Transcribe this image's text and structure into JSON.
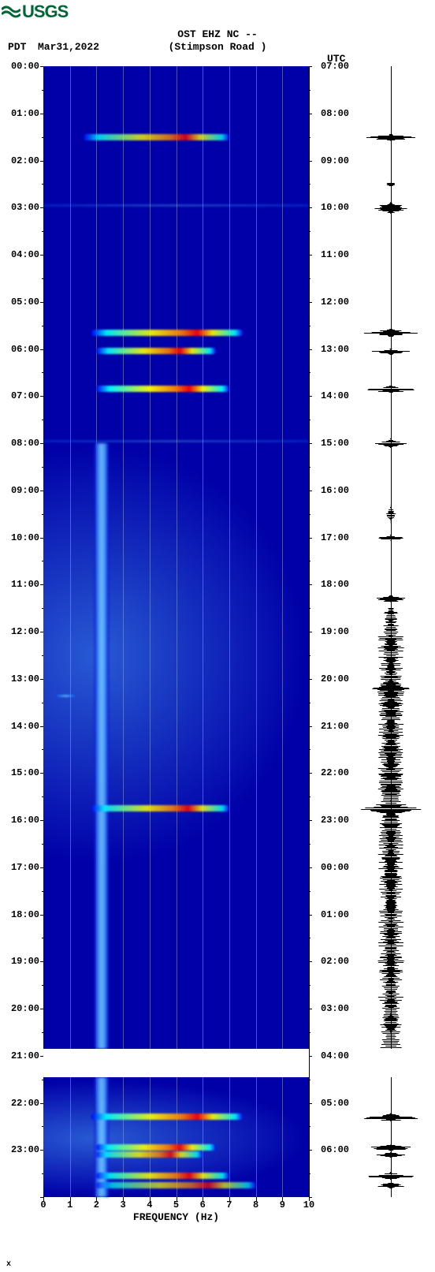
{
  "logo": {
    "text": "USGS",
    "color": "#006633"
  },
  "header": {
    "station_line": "OST EHZ NC --",
    "location_line": "(Stimpson Road )",
    "tz_left": "PDT",
    "date": "Mar31,2022",
    "tz_right": "UTC"
  },
  "axes": {
    "x_label": "FREQUENCY (Hz)",
    "x_min": 0,
    "x_max": 10,
    "x_step": 1,
    "left_ticks": [
      "00:00",
      "01:00",
      "02:00",
      "03:00",
      "04:00",
      "05:00",
      "06:00",
      "07:00",
      "08:00",
      "09:00",
      "10:00",
      "11:00",
      "12:00",
      "13:00",
      "14:00",
      "15:00",
      "16:00",
      "17:00",
      "18:00",
      "19:00",
      "20:00",
      "21:00",
      "22:00",
      "23:00"
    ],
    "right_ticks": [
      "07:00",
      "08:00",
      "09:00",
      "10:00",
      "11:00",
      "12:00",
      "13:00",
      "14:00",
      "15:00",
      "16:00",
      "17:00",
      "18:00",
      "19:00",
      "20:00",
      "21:00",
      "22:00",
      "23:00",
      "00:00",
      "01:00",
      "02:00",
      "03:00",
      "04:00",
      "05:00",
      "06:00"
    ],
    "n_hours": 24
  },
  "plot": {
    "bg_color": "#0000a8",
    "grid_color": "rgba(200,200,200,0.4)"
  },
  "data_gaps": [
    {
      "start_hour": 20.85,
      "end_hour": 21.45
    }
  ],
  "noise_column": [
    {
      "start_hour": 8.0,
      "end_hour": 20.85,
      "freq_center": 2.2
    },
    {
      "start_hour": 21.45,
      "end_hour": 24.0,
      "freq_center": 2.2
    }
  ],
  "diffuse_noise": [
    {
      "start_hour": 8.0,
      "end_hour": 17.0
    },
    {
      "start_hour": 21.5,
      "end_hour": 24.0
    }
  ],
  "events": [
    {
      "hour": 1.5,
      "freq_start": 1.5,
      "freq_end": 7.0,
      "intensity": 0.8
    },
    {
      "hour": 3.0,
      "freq_start": 0.0,
      "freq_end": 10.0,
      "intensity": 0.3,
      "thin": true
    },
    {
      "hour": 5.65,
      "freq_start": 1.8,
      "freq_end": 7.5,
      "intensity": 0.9
    },
    {
      "hour": 6.05,
      "freq_start": 2.0,
      "freq_end": 6.5,
      "intensity": 0.9
    },
    {
      "hour": 6.85,
      "freq_start": 2.0,
      "freq_end": 7.0,
      "intensity": 0.95
    },
    {
      "hour": 8.0,
      "freq_start": 0.0,
      "freq_end": 10.0,
      "intensity": 0.3,
      "thin": true
    },
    {
      "hour": 13.4,
      "freq_start": 0.5,
      "freq_end": 1.2,
      "intensity": 0.7,
      "thin": true
    },
    {
      "hour": 15.75,
      "freq_start": 1.8,
      "freq_end": 7.0,
      "intensity": 0.85
    },
    {
      "hour": 22.3,
      "freq_start": 1.8,
      "freq_end": 7.5,
      "intensity": 0.9
    },
    {
      "hour": 22.95,
      "freq_start": 2.0,
      "freq_end": 6.5,
      "intensity": 0.9
    },
    {
      "hour": 23.1,
      "freq_start": 2.0,
      "freq_end": 6.0,
      "intensity": 0.8
    },
    {
      "hour": 23.55,
      "freq_start": 2.0,
      "freq_end": 7.0,
      "intensity": 0.85
    },
    {
      "hour": 23.75,
      "freq_start": 2.0,
      "freq_end": 8.0,
      "intensity": 0.7
    }
  ],
  "waveform": {
    "bursts": [
      {
        "hour": 1.5,
        "amp": 0.85,
        "width": 0.12
      },
      {
        "hour": 2.5,
        "amp": 0.15,
        "width": 0.05
      },
      {
        "hour": 3.0,
        "amp": 0.55,
        "width": 0.25
      },
      {
        "hour": 5.65,
        "amp": 0.9,
        "width": 0.15
      },
      {
        "hour": 6.05,
        "amp": 0.6,
        "width": 0.1
      },
      {
        "hour": 6.85,
        "amp": 0.9,
        "width": 0.15
      },
      {
        "hour": 8.0,
        "amp": 0.5,
        "width": 0.2
      },
      {
        "hour": 9.5,
        "amp": 0.15,
        "width": 0.4
      },
      {
        "hour": 10.0,
        "amp": 0.45,
        "width": 0.1
      },
      {
        "hour": 11.3,
        "amp": 0.5,
        "width": 0.15
      },
      {
        "hour": 12.5,
        "amp": 0.25,
        "width": 2.0
      },
      {
        "hour": 13.2,
        "amp": 0.7,
        "width": 0.4
      },
      {
        "hour": 14.0,
        "amp": 0.35,
        "width": 1.0
      },
      {
        "hour": 15.0,
        "amp": 0.4,
        "width": 1.0
      },
      {
        "hour": 15.75,
        "amp": 0.95,
        "width": 0.3
      },
      {
        "hour": 16.5,
        "amp": 0.3,
        "width": 1.5
      },
      {
        "hour": 17.5,
        "amp": 0.25,
        "width": 1.0
      },
      {
        "hour": 18.5,
        "amp": 0.25,
        "width": 1.0
      },
      {
        "hour": 19.5,
        "amp": 0.3,
        "width": 1.0
      },
      {
        "hour": 20.3,
        "amp": 0.35,
        "width": 0.5
      },
      {
        "hour": 22.3,
        "amp": 0.85,
        "width": 0.15
      },
      {
        "hour": 22.95,
        "amp": 0.7,
        "width": 0.12
      },
      {
        "hour": 23.1,
        "amp": 0.5,
        "width": 0.1
      },
      {
        "hour": 23.55,
        "amp": 0.75,
        "width": 0.15
      },
      {
        "hour": 23.75,
        "amp": 0.5,
        "width": 0.1
      }
    ],
    "dense_noise": [
      {
        "start_hour": 12.0,
        "end_hour": 20.85,
        "amp": 0.3
      }
    ]
  },
  "footer_mark": "x"
}
